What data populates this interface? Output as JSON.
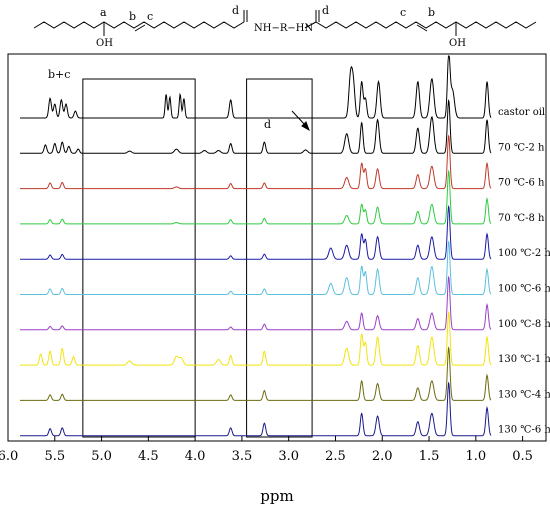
{
  "chart_data": {
    "type": "line",
    "xlabel": "ppm",
    "xlim": [
      6.0,
      0.25
    ],
    "x_reversed": true,
    "ticks": [
      "6.0",
      "5.5",
      "5.0",
      "4.5",
      "4.0",
      "3.5",
      "3.0",
      "2.5",
      "2.0",
      "1.5",
      "1.0",
      "0.5"
    ],
    "tick_values": [
      6.0,
      5.5,
      5.0,
      4.5,
      4.0,
      3.5,
      3.0,
      2.5,
      2.0,
      1.5,
      1.0,
      0.5
    ],
    "structure": {
      "labels": [
        "a",
        "b",
        "c",
        "d",
        "d",
        "c",
        "b"
      ],
      "oh": [
        "OH",
        "OH"
      ],
      "linker": "NH−R−HN"
    },
    "annotations": {
      "bc": "b+c",
      "d": "d"
    },
    "boxes": [
      {
        "from": 5.2,
        "to": 4.0
      },
      {
        "from": 3.45,
        "to": 2.75
      }
    ],
    "series": [
      {
        "name": "castor oil",
        "color": "#000000",
        "peaks": [
          [
            5.55,
            0.7,
            0.02
          ],
          [
            5.5,
            0.5,
            0.02
          ],
          [
            5.43,
            0.65,
            0.02
          ],
          [
            5.38,
            0.5,
            0.02
          ],
          [
            5.28,
            0.25,
            0.02
          ],
          [
            4.31,
            0.85,
            0.015
          ],
          [
            4.27,
            0.75,
            0.015
          ],
          [
            4.16,
            0.85,
            0.015
          ],
          [
            4.12,
            0.7,
            0.015
          ],
          [
            3.62,
            0.65,
            0.02
          ],
          [
            2.34,
            1.4,
            0.025
          ],
          [
            2.31,
            1.2,
            0.025
          ],
          [
            2.22,
            1.3,
            0.02
          ],
          [
            2.18,
            0.7,
            0.02
          ],
          [
            2.04,
            1.3,
            0.025
          ],
          [
            1.62,
            1.3,
            0.025
          ],
          [
            1.47,
            1.4,
            0.03
          ],
          [
            1.29,
            2.2,
            0.02
          ],
          [
            1.25,
            1.0,
            0.03
          ],
          [
            0.88,
            1.3,
            0.02
          ]
        ]
      },
      {
        "name": "70 ℃-2 h",
        "color": "#000000",
        "peaks": [
          [
            5.6,
            0.3,
            0.02
          ],
          [
            5.5,
            0.35,
            0.02
          ],
          [
            5.42,
            0.4,
            0.02
          ],
          [
            5.35,
            0.25,
            0.02
          ],
          [
            5.25,
            0.15,
            0.02
          ],
          [
            4.7,
            0.08,
            0.03
          ],
          [
            4.2,
            0.15,
            0.03
          ],
          [
            3.9,
            0.1,
            0.03
          ],
          [
            3.75,
            0.1,
            0.03
          ],
          [
            3.62,
            0.35,
            0.02
          ],
          [
            3.26,
            0.4,
            0.02
          ],
          [
            2.82,
            0.12,
            0.03
          ],
          [
            2.38,
            0.7,
            0.03
          ],
          [
            2.22,
            1.1,
            0.02
          ],
          [
            2.05,
            1.2,
            0.025
          ],
          [
            1.62,
            0.9,
            0.025
          ],
          [
            1.47,
            1.3,
            0.03
          ],
          [
            1.29,
            1.9,
            0.02
          ],
          [
            0.88,
            1.2,
            0.02
          ]
        ]
      },
      {
        "name": "70 ℃-6 h",
        "color": "#c0392b",
        "peaks": [
          [
            5.55,
            0.2,
            0.02
          ],
          [
            5.42,
            0.22,
            0.02
          ],
          [
            4.2,
            0.06,
            0.03
          ],
          [
            3.62,
            0.18,
            0.02
          ],
          [
            3.26,
            0.2,
            0.02
          ],
          [
            2.38,
            0.4,
            0.03
          ],
          [
            2.22,
            0.9,
            0.02
          ],
          [
            2.18,
            0.7,
            0.02
          ],
          [
            2.05,
            0.7,
            0.025
          ],
          [
            1.62,
            0.5,
            0.025
          ],
          [
            1.47,
            0.8,
            0.03
          ],
          [
            1.29,
            1.9,
            0.02
          ],
          [
            0.88,
            0.9,
            0.02
          ]
        ]
      },
      {
        "name": "70 ℃-8 h",
        "color": "#2ecc40",
        "peaks": [
          [
            5.55,
            0.15,
            0.02
          ],
          [
            5.42,
            0.17,
            0.02
          ],
          [
            4.2,
            0.05,
            0.03
          ],
          [
            3.62,
            0.15,
            0.02
          ],
          [
            3.26,
            0.2,
            0.02
          ],
          [
            2.38,
            0.3,
            0.03
          ],
          [
            2.22,
            0.7,
            0.02
          ],
          [
            2.18,
            0.5,
            0.02
          ],
          [
            2.05,
            0.6,
            0.025
          ],
          [
            1.62,
            0.45,
            0.025
          ],
          [
            1.47,
            0.7,
            0.03
          ],
          [
            1.29,
            1.9,
            0.02
          ],
          [
            0.88,
            0.9,
            0.02
          ]
        ]
      },
      {
        "name": "100 ℃-2 h",
        "color": "#1a1aa6",
        "peaks": [
          [
            5.55,
            0.15,
            0.02
          ],
          [
            5.42,
            0.17,
            0.02
          ],
          [
            3.62,
            0.12,
            0.02
          ],
          [
            3.26,
            0.18,
            0.02
          ],
          [
            2.55,
            0.4,
            0.03
          ],
          [
            2.38,
            0.5,
            0.03
          ],
          [
            2.22,
            0.9,
            0.02
          ],
          [
            2.18,
            0.7,
            0.02
          ],
          [
            2.05,
            0.8,
            0.025
          ],
          [
            1.62,
            0.5,
            0.025
          ],
          [
            1.47,
            0.8,
            0.03
          ],
          [
            1.29,
            1.9,
            0.02
          ],
          [
            0.88,
            0.9,
            0.02
          ]
        ]
      },
      {
        "name": "100 ℃-6 h",
        "color": "#5bc0de",
        "peaks": [
          [
            5.55,
            0.2,
            0.02
          ],
          [
            5.42,
            0.22,
            0.02
          ],
          [
            3.62,
            0.12,
            0.02
          ],
          [
            3.26,
            0.2,
            0.02
          ],
          [
            2.55,
            0.4,
            0.03
          ],
          [
            2.38,
            0.6,
            0.03
          ],
          [
            2.22,
            1.0,
            0.02
          ],
          [
            2.18,
            0.8,
            0.02
          ],
          [
            2.05,
            0.9,
            0.025
          ],
          [
            1.62,
            0.6,
            0.025
          ],
          [
            1.47,
            1.0,
            0.03
          ],
          [
            1.29,
            1.9,
            0.02
          ],
          [
            0.88,
            0.9,
            0.02
          ]
        ]
      },
      {
        "name": "100 ℃-8 h",
        "color": "#9b3fc7",
        "peaks": [
          [
            5.55,
            0.12,
            0.02
          ],
          [
            5.42,
            0.14,
            0.02
          ],
          [
            3.62,
            0.1,
            0.02
          ],
          [
            3.26,
            0.2,
            0.02
          ],
          [
            2.38,
            0.3,
            0.03
          ],
          [
            2.22,
            0.6,
            0.02
          ],
          [
            2.05,
            0.5,
            0.025
          ],
          [
            1.62,
            0.4,
            0.025
          ],
          [
            1.47,
            0.6,
            0.03
          ],
          [
            1.29,
            1.9,
            0.02
          ],
          [
            0.88,
            0.9,
            0.02
          ]
        ]
      },
      {
        "name": "130 ℃-1 h",
        "color": "#f1e40f",
        "peaks": [
          [
            5.65,
            0.4,
            0.02
          ],
          [
            5.55,
            0.5,
            0.02
          ],
          [
            5.42,
            0.6,
            0.02
          ],
          [
            5.3,
            0.3,
            0.02
          ],
          [
            4.7,
            0.15,
            0.03
          ],
          [
            4.2,
            0.3,
            0.03
          ],
          [
            4.15,
            0.25,
            0.03
          ],
          [
            3.75,
            0.2,
            0.03
          ],
          [
            3.62,
            0.35,
            0.02
          ],
          [
            3.26,
            0.5,
            0.02
          ],
          [
            2.38,
            0.6,
            0.03
          ],
          [
            2.22,
            1.1,
            0.02
          ],
          [
            2.18,
            0.8,
            0.02
          ],
          [
            2.05,
            1.0,
            0.025
          ],
          [
            1.62,
            0.7,
            0.025
          ],
          [
            1.47,
            1.0,
            0.03
          ],
          [
            1.29,
            1.9,
            0.02
          ],
          [
            0.88,
            1.0,
            0.02
          ]
        ]
      },
      {
        "name": "130 ℃-4 h",
        "color": "#6b6b10",
        "peaks": [
          [
            5.55,
            0.2,
            0.02
          ],
          [
            5.42,
            0.22,
            0.02
          ],
          [
            3.62,
            0.2,
            0.02
          ],
          [
            3.26,
            0.35,
            0.02
          ],
          [
            2.22,
            0.7,
            0.02
          ],
          [
            2.05,
            0.6,
            0.025
          ],
          [
            1.62,
            0.45,
            0.025
          ],
          [
            1.47,
            0.7,
            0.03
          ],
          [
            1.29,
            1.9,
            0.02
          ],
          [
            0.88,
            0.9,
            0.02
          ]
        ]
      },
      {
        "name": "130 ℃-6 h",
        "color": "#1a1a8c",
        "peaks": [
          [
            5.55,
            0.25,
            0.02
          ],
          [
            5.42,
            0.28,
            0.02
          ],
          [
            3.62,
            0.28,
            0.02
          ],
          [
            3.26,
            0.45,
            0.02
          ],
          [
            2.22,
            0.8,
            0.02
          ],
          [
            2.05,
            0.7,
            0.025
          ],
          [
            1.62,
            0.5,
            0.025
          ],
          [
            1.47,
            0.8,
            0.03
          ],
          [
            1.29,
            1.9,
            0.02
          ],
          [
            0.88,
            1.0,
            0.02
          ]
        ]
      }
    ]
  }
}
